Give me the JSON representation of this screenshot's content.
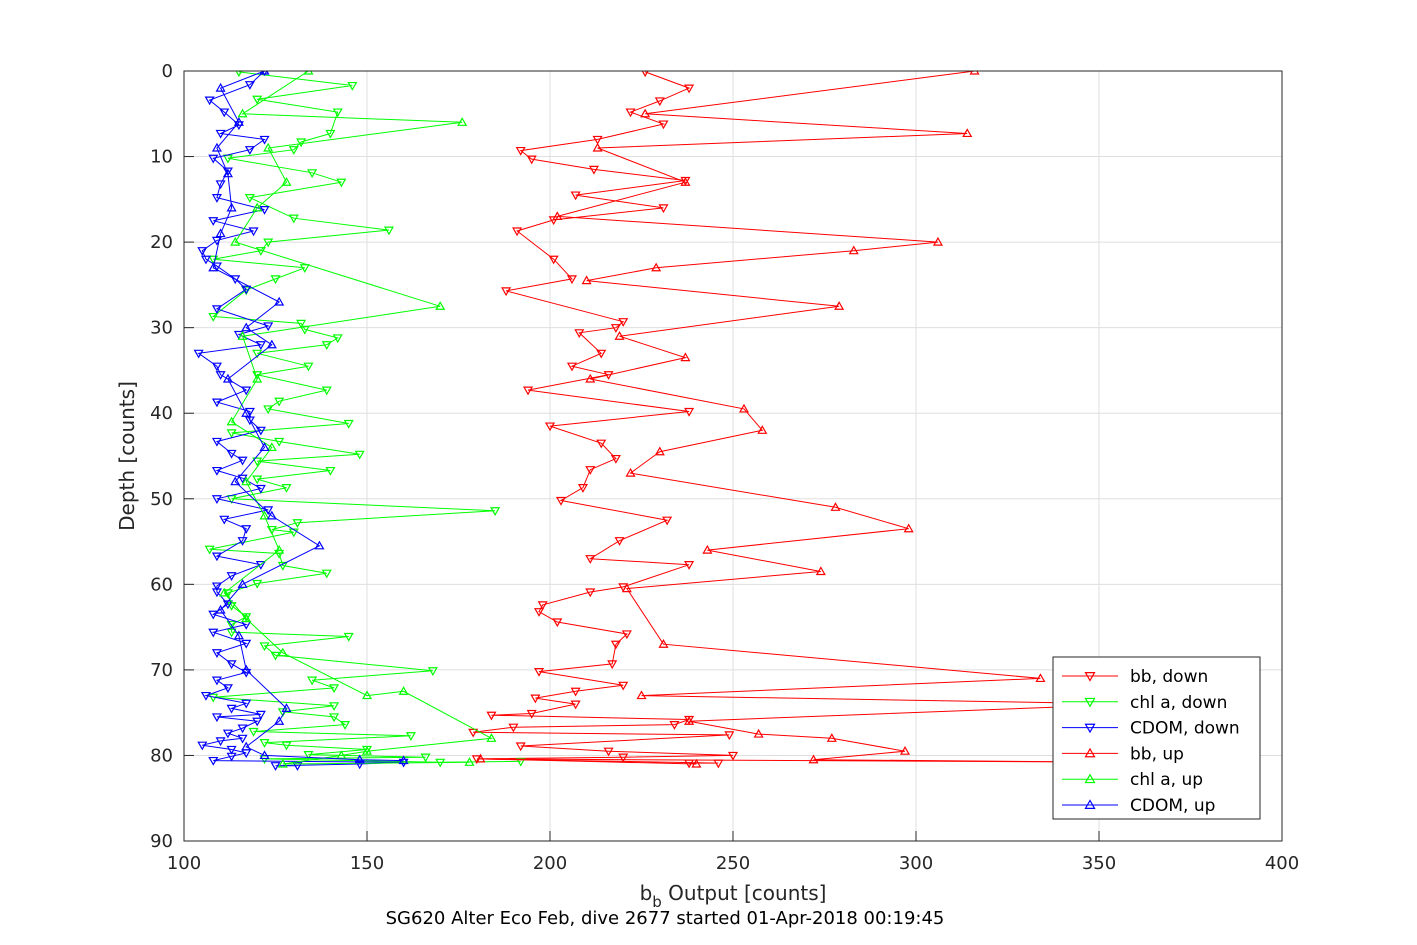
{
  "chart_data": {
    "type": "line",
    "caption": "SG620 Alter Eco Feb, dive 2677 started 01-Apr-2018 00:19:45",
    "xlabel_base": "b",
    "xlabel_sub": "b",
    "xlabel_rest": " Output [counts]",
    "ylabel": "Depth [counts]",
    "xlim": [
      100,
      400
    ],
    "ylim": [
      0,
      90
    ],
    "y_reversed": true,
    "xticks": [
      100,
      150,
      200,
      250,
      300,
      350,
      400
    ],
    "yticks": [
      0,
      10,
      20,
      30,
      40,
      50,
      60,
      70,
      80,
      90
    ],
    "grid": true,
    "legend_position": "bottom-right",
    "series": [
      {
        "name": "bb, down",
        "color": "#ff0000",
        "marker": "triangle-down",
        "points": [
          [
            226,
            0.1
          ],
          [
            238,
            2
          ],
          [
            230,
            3.5
          ],
          [
            222,
            4.8
          ],
          [
            231,
            6.2
          ],
          [
            213,
            8
          ],
          [
            192,
            9.3
          ],
          [
            195,
            10.3
          ],
          [
            212,
            11.5
          ],
          [
            237,
            12.8
          ],
          [
            207,
            14.5
          ],
          [
            231,
            16
          ],
          [
            201,
            17.4
          ],
          [
            191,
            18.7
          ],
          [
            201,
            22
          ],
          [
            206,
            24.3
          ],
          [
            188,
            25.7
          ],
          [
            220,
            29.3
          ],
          [
            218,
            30
          ],
          [
            208,
            30.6
          ],
          [
            214,
            33
          ],
          [
            206,
            34.5
          ],
          [
            216,
            35.5
          ],
          [
            194,
            37.3
          ],
          [
            238,
            39.8
          ],
          [
            200,
            41.5
          ],
          [
            214,
            43.5
          ],
          [
            218,
            45.3
          ],
          [
            211,
            46.6
          ],
          [
            209,
            48.7
          ],
          [
            203,
            50.2
          ],
          [
            232,
            52.5
          ],
          [
            219,
            54.9
          ],
          [
            211,
            57
          ],
          [
            238,
            57.7
          ],
          [
            220,
            60.3
          ],
          [
            211,
            60.9
          ],
          [
            198,
            62.4
          ],
          [
            197,
            63.2
          ],
          [
            202,
            64.4
          ],
          [
            221,
            65.8
          ],
          [
            218,
            67
          ],
          [
            217,
            69.3
          ],
          [
            197,
            70.2
          ],
          [
            220,
            71.8
          ],
          [
            207,
            72.5
          ],
          [
            196,
            73.3
          ],
          [
            207,
            74
          ],
          [
            195,
            75.1
          ],
          [
            184,
            75.3
          ],
          [
            238,
            75.8
          ],
          [
            234,
            76.4
          ],
          [
            190,
            76.7
          ],
          [
            179,
            77.3
          ],
          [
            249,
            77.6
          ],
          [
            192,
            78.9
          ],
          [
            216,
            79.5
          ],
          [
            250,
            80
          ],
          [
            220,
            80.2
          ],
          [
            180,
            80.4
          ],
          [
            246,
            80.9
          ],
          [
            238,
            80.9
          ]
        ]
      },
      {
        "name": "chl a, down",
        "color": "#00ff00",
        "marker": "triangle-down",
        "points": [
          [
            115,
            0.1
          ],
          [
            146,
            1.7
          ],
          [
            120,
            3.3
          ],
          [
            142,
            4.8
          ],
          [
            140,
            7.3
          ],
          [
            132,
            8.3
          ],
          [
            130,
            9.2
          ],
          [
            112,
            10.2
          ],
          [
            135,
            11.9
          ],
          [
            143,
            13
          ],
          [
            118,
            14.8
          ],
          [
            130,
            17.2
          ],
          [
            156,
            18.6
          ],
          [
            123,
            20
          ],
          [
            121,
            21
          ],
          [
            108,
            22
          ],
          [
            133,
            23
          ],
          [
            125,
            24.3
          ],
          [
            117,
            25.6
          ],
          [
            108,
            28.7
          ],
          [
            132,
            29.5
          ],
          [
            133,
            30.2
          ],
          [
            142,
            31.2
          ],
          [
            139,
            32
          ],
          [
            120,
            33
          ],
          [
            134,
            34.5
          ],
          [
            120,
            35.5
          ],
          [
            139,
            37.3
          ],
          [
            126,
            38.6
          ],
          [
            123,
            39.5
          ],
          [
            145,
            41.2
          ],
          [
            113,
            42.3
          ],
          [
            126,
            43.3
          ],
          [
            148,
            44.8
          ],
          [
            120,
            45.6
          ],
          [
            140,
            46.7
          ],
          [
            120,
            47.7
          ],
          [
            128,
            48.7
          ],
          [
            113,
            50
          ],
          [
            185,
            51.4
          ],
          [
            131,
            52.8
          ],
          [
            124,
            53.6
          ],
          [
            130,
            53.9
          ],
          [
            107,
            55.9
          ],
          [
            126,
            56.4
          ],
          [
            127,
            57.8
          ],
          [
            139,
            58.7
          ],
          [
            120,
            59.9
          ],
          [
            112,
            61
          ],
          [
            113,
            62.5
          ],
          [
            117,
            63.8
          ],
          [
            113,
            64.7
          ],
          [
            113,
            65.6
          ],
          [
            145,
            66.1
          ],
          [
            122,
            67.2
          ],
          [
            125,
            68.3
          ],
          [
            168,
            70.1
          ],
          [
            135,
            71.2
          ],
          [
            141,
            72.1
          ],
          [
            108,
            73.2
          ],
          [
            141,
            74.2
          ],
          [
            127,
            74.9
          ],
          [
            141,
            75.5
          ],
          [
            144,
            76.4
          ],
          [
            119,
            77.2
          ],
          [
            162,
            77.7
          ],
          [
            122,
            78.5
          ],
          [
            128,
            78.8
          ],
          [
            150,
            79.3
          ],
          [
            134,
            79.9
          ],
          [
            166,
            80.2
          ],
          [
            122,
            80.4
          ],
          [
            170,
            80.8
          ],
          [
            192,
            80.7
          ]
        ]
      },
      {
        "name": "CDOM, down",
        "color": "#0000ff",
        "marker": "triangle-down",
        "points": [
          [
            122,
            0
          ],
          [
            118,
            1.6
          ],
          [
            107,
            3.4
          ],
          [
            111,
            4.8
          ],
          [
            115,
            6.3
          ],
          [
            110,
            7.3
          ],
          [
            122,
            8
          ],
          [
            118,
            9.2
          ],
          [
            108,
            10.2
          ],
          [
            112,
            11.7
          ],
          [
            110,
            13.2
          ],
          [
            109,
            14.8
          ],
          [
            122,
            16.2
          ],
          [
            108,
            17.5
          ],
          [
            119,
            18.7
          ],
          [
            109,
            19.8
          ],
          [
            105,
            21
          ],
          [
            106,
            22
          ],
          [
            109,
            22.8
          ],
          [
            114,
            24.3
          ],
          [
            117,
            25.5
          ],
          [
            109,
            27.8
          ],
          [
            123,
            29.8
          ],
          [
            115,
            30.8
          ],
          [
            121,
            32
          ],
          [
            104,
            33
          ],
          [
            109,
            34.5
          ],
          [
            110,
            35.5
          ],
          [
            117,
            37.3
          ],
          [
            109,
            38.7
          ],
          [
            118,
            39.8
          ],
          [
            118,
            40.8
          ],
          [
            121,
            42
          ],
          [
            109,
            43.3
          ],
          [
            113,
            44.7
          ],
          [
            116,
            45.5
          ],
          [
            109,
            46.7
          ],
          [
            116,
            47.6
          ],
          [
            121,
            48.8
          ],
          [
            109,
            50
          ],
          [
            123,
            51.3
          ],
          [
            111,
            52.4
          ],
          [
            117,
            53.5
          ],
          [
            116,
            54.9
          ],
          [
            109,
            56.7
          ],
          [
            121,
            57.7
          ],
          [
            113,
            59
          ],
          [
            109,
            60.2
          ],
          [
            109,
            60.9
          ],
          [
            112,
            62.3
          ],
          [
            108,
            63.5
          ],
          [
            117,
            64.7
          ],
          [
            108,
            65.6
          ],
          [
            117,
            66.9
          ],
          [
            109,
            68
          ],
          [
            113,
            69.3
          ],
          [
            117,
            70.3
          ],
          [
            109,
            71.2
          ],
          [
            112,
            72.1
          ],
          [
            106,
            73
          ],
          [
            117,
            73.9
          ],
          [
            113,
            74.5
          ],
          [
            121,
            75.2
          ],
          [
            109,
            75.5
          ],
          [
            120,
            76
          ],
          [
            116,
            76.8
          ],
          [
            112,
            77.4
          ],
          [
            116,
            78
          ],
          [
            110,
            78.3
          ],
          [
            105,
            78.8
          ],
          [
            113,
            79.3
          ],
          [
            117,
            79.7
          ],
          [
            113,
            80.1
          ],
          [
            108,
            80.6
          ],
          [
            160,
            80.8
          ],
          [
            148,
            81
          ],
          [
            125,
            81.2
          ],
          [
            131,
            81.2
          ]
        ]
      },
      {
        "name": "bb, up",
        "color": "#ff0000",
        "marker": "triangle-up",
        "points": [
          [
            316,
            0
          ],
          [
            226,
            5
          ],
          [
            314,
            7.3
          ],
          [
            213,
            9
          ],
          [
            237,
            13
          ],
          [
            202,
            17
          ],
          [
            306,
            20
          ],
          [
            283,
            21
          ],
          [
            229,
            23
          ],
          [
            210,
            24.5
          ],
          [
            279,
            27.5
          ],
          [
            219,
            31
          ],
          [
            237,
            33.5
          ],
          [
            211,
            36
          ],
          [
            253,
            39.5
          ],
          [
            258,
            42
          ],
          [
            230,
            44.5
          ],
          [
            222,
            47
          ],
          [
            278,
            51
          ],
          [
            298,
            53.5
          ],
          [
            243,
            56
          ],
          [
            274,
            58.5
          ],
          [
            221,
            60.5
          ],
          [
            231,
            67
          ],
          [
            334,
            71
          ],
          [
            225,
            73
          ],
          [
            360,
            74
          ],
          [
            238,
            76
          ],
          [
            257,
            77.5
          ],
          [
            277,
            78
          ],
          [
            297,
            79.5
          ],
          [
            272,
            80.5
          ],
          [
            360,
            80.8
          ],
          [
            181,
            80.4
          ],
          [
            240,
            81
          ]
        ]
      },
      {
        "name": "chl a, up",
        "color": "#00ff00",
        "marker": "triangle-up",
        "points": [
          [
            134,
            0
          ],
          [
            116,
            5
          ],
          [
            176,
            6
          ],
          [
            123,
            9
          ],
          [
            128,
            13
          ],
          [
            120,
            16
          ],
          [
            114,
            20
          ],
          [
            170,
            27.5
          ],
          [
            116,
            31
          ],
          [
            120,
            36
          ],
          [
            113,
            41
          ],
          [
            124,
            44
          ],
          [
            117,
            48
          ],
          [
            122,
            52
          ],
          [
            126,
            56
          ],
          [
            111,
            61
          ],
          [
            117,
            64
          ],
          [
            127,
            68
          ],
          [
            150,
            73
          ],
          [
            160,
            72.5
          ],
          [
            184,
            78
          ],
          [
            150,
            79.5
          ],
          [
            143,
            80
          ],
          [
            127,
            81
          ],
          [
            178,
            80.8
          ]
        ]
      },
      {
        "name": "CDOM, up",
        "color": "#0000ff",
        "marker": "triangle-up",
        "points": [
          [
            122,
            0
          ],
          [
            110,
            2
          ],
          [
            115,
            6
          ],
          [
            109,
            9
          ],
          [
            112,
            12
          ],
          [
            113,
            16
          ],
          [
            110,
            19
          ],
          [
            108,
            23
          ],
          [
            126,
            27
          ],
          [
            117,
            30
          ],
          [
            124,
            32
          ],
          [
            112,
            36
          ],
          [
            117,
            40
          ],
          [
            122,
            44
          ],
          [
            114,
            48
          ],
          [
            124,
            52
          ],
          [
            137,
            55.5
          ],
          [
            116,
            60
          ],
          [
            110,
            63
          ],
          [
            115,
            66
          ],
          [
            117,
            70
          ],
          [
            128,
            74.5
          ],
          [
            126,
            76
          ],
          [
            117,
            79
          ],
          [
            122,
            80
          ],
          [
            148,
            80.5
          ],
          [
            160,
            80.6
          ]
        ]
      }
    ]
  }
}
